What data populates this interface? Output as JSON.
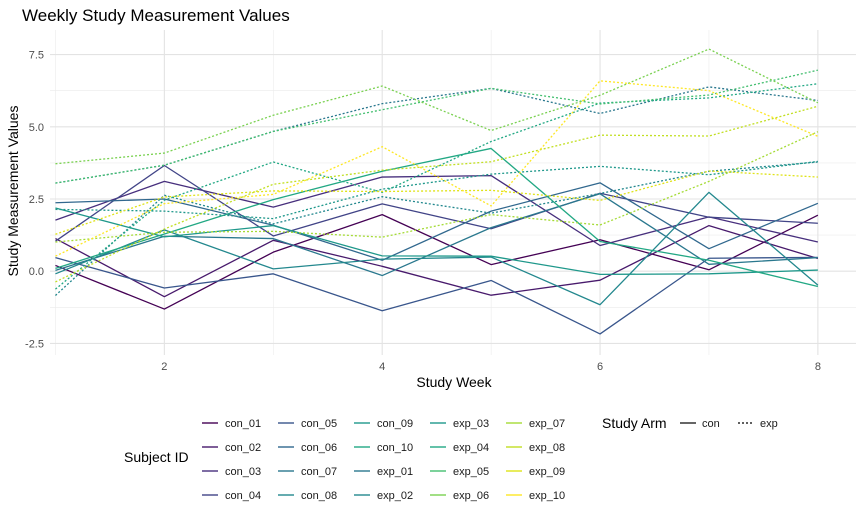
{
  "chart_data": {
    "type": "line",
    "title": "Weekly Study Measurement Values",
    "xlabel": "Study Week",
    "ylabel": "Study Measurement Values",
    "xlim": [
      0.95,
      8.35
    ],
    "ylim": [
      -2.9,
      8.35
    ],
    "xticks": [
      2,
      4,
      6,
      8
    ],
    "yticks": [
      -2.5,
      0.0,
      2.5,
      5.0,
      7.5
    ],
    "ytick_labels": [
      "-2.5",
      "0.0",
      "2.5",
      "5.0",
      "7.5"
    ],
    "grid": true,
    "legend_color_title": "Subject ID",
    "legend_linetype_title": "Study Arm",
    "linetypes": [
      {
        "label": "con",
        "dash": "solid"
      },
      {
        "label": "exp",
        "dash": "dotted"
      }
    ],
    "x": [
      1,
      2,
      3,
      4,
      5,
      6,
      7,
      8
    ],
    "series": [
      {
        "name": "con_01",
        "arm": "con",
        "color": "#440154",
        "values": [
          0.2,
          -1.31,
          0.66,
          1.96,
          0.23,
          1.09,
          0.05,
          1.94
        ]
      },
      {
        "name": "con_02",
        "arm": "con",
        "color": "#481A6C",
        "values": [
          1.13,
          -0.88,
          1.07,
          0.17,
          -0.83,
          -0.31,
          1.58,
          0.44
        ]
      },
      {
        "name": "con_03",
        "arm": "con",
        "color": "#472F7D",
        "values": [
          1.77,
          3.11,
          2.22,
          3.26,
          3.31,
          0.89,
          1.88,
          1.01
        ]
      },
      {
        "name": "con_04",
        "arm": "con",
        "color": "#414487",
        "values": [
          1.04,
          3.66,
          1.22,
          2.33,
          1.47,
          2.7,
          1.87,
          1.66
        ]
      },
      {
        "name": "con_05",
        "arm": "con",
        "color": "#39568C",
        "values": [
          0.47,
          -0.58,
          -0.09,
          -1.37,
          -0.32,
          -2.17,
          0.45,
          0.48
        ]
      },
      {
        "name": "con_06",
        "arm": "con",
        "color": "#31688E",
        "values": [
          2.37,
          2.5,
          1.59,
          0.38,
          2.08,
          3.06,
          0.78,
          2.35
        ]
      },
      {
        "name": "con_07",
        "arm": "con",
        "color": "#2A788E",
        "values": [
          0.03,
          1.21,
          1.13,
          -0.15,
          1.51,
          2.68,
          0.24,
          0.47
        ]
      },
      {
        "name": "con_08",
        "arm": "con",
        "color": "#23888E",
        "values": [
          -0.09,
          1.43,
          0.08,
          0.42,
          0.49,
          -1.16,
          2.73,
          -0.48
        ]
      },
      {
        "name": "con_09",
        "arm": "con",
        "color": "#1F988B",
        "values": [
          2.19,
          1.19,
          1.58,
          0.53,
          0.52,
          -0.11,
          -0.09,
          0.04
        ]
      },
      {
        "name": "con_10",
        "arm": "con",
        "color": "#22A884",
        "values": [
          0.1,
          1.29,
          2.48,
          3.46,
          4.25,
          1.03,
          0.38,
          -0.53
        ]
      },
      {
        "name": "exp_01",
        "arm": "exp",
        "color": "#2A788E",
        "values": [
          3.05,
          3.67,
          4.84,
          5.8,
          6.33,
          5.46,
          6.38,
          5.91
        ]
      },
      {
        "name": "exp_02",
        "arm": "exp",
        "color": "#23888E",
        "values": [
          -0.84,
          2.63,
          1.64,
          2.58,
          2.01,
          2.69,
          3.46,
          3.78
        ]
      },
      {
        "name": "exp_03",
        "arm": "exp",
        "color": "#1F988B",
        "values": [
          2.14,
          2.08,
          1.82,
          2.84,
          3.36,
          3.63,
          3.34,
          3.8
        ]
      },
      {
        "name": "exp_04",
        "arm": "exp",
        "color": "#22A884",
        "values": [
          -0.62,
          2.46,
          3.78,
          2.73,
          4.49,
          5.82,
          6.0,
          6.49
        ]
      },
      {
        "name": "exp_05",
        "arm": "exp",
        "color": "#44BF70",
        "values": [
          3.05,
          3.67,
          4.84,
          5.59,
          6.33,
          5.79,
          6.1,
          6.96
        ]
      },
      {
        "name": "exp_06",
        "arm": "exp",
        "color": "#7AD151",
        "values": [
          3.72,
          4.09,
          5.4,
          6.41,
          4.87,
          6.09,
          7.69,
          5.83
        ]
      },
      {
        "name": "exp_07",
        "arm": "exp",
        "color": "#A5DB36",
        "values": [
          1.01,
          1.35,
          1.38,
          1.18,
          1.96,
          1.6,
          3.11,
          4.83
        ]
      },
      {
        "name": "exp_08",
        "arm": "exp",
        "color": "#C2DF23",
        "values": [
          -0.37,
          1.46,
          3.01,
          3.5,
          3.79,
          4.71,
          4.68,
          5.71
        ]
      },
      {
        "name": "exp_09",
        "arm": "exp",
        "color": "#DFE318",
        "values": [
          1.28,
          2.57,
          2.78,
          2.76,
          2.8,
          2.45,
          3.47,
          3.26
        ]
      },
      {
        "name": "exp_10",
        "arm": "exp",
        "color": "#FDE725",
        "values": [
          0.52,
          2.34,
          2.66,
          4.31,
          2.26,
          6.59,
          6.25,
          4.67
        ]
      }
    ]
  }
}
